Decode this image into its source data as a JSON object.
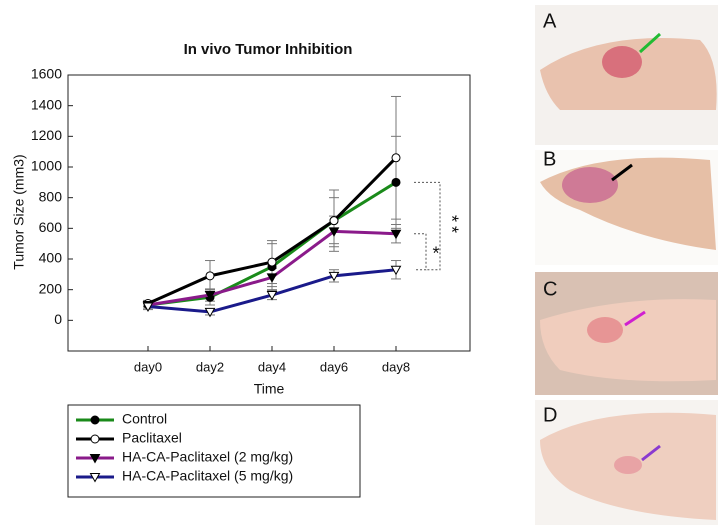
{
  "chart_data": {
    "type": "line",
    "title": "In vivo Tumor Inhibition",
    "x_label": "Time",
    "y_label": "Tumor Size (mm3)",
    "categories": [
      "day0",
      "day2",
      "day4",
      "day6",
      "day8"
    ],
    "ylim": [
      -200,
      1600
    ],
    "yticks": [
      0,
      200,
      400,
      600,
      800,
      1000,
      1200,
      1400,
      1600
    ],
    "series": [
      {
        "name": "Control",
        "color": "#1a8a1a",
        "marker": "circle",
        "marker_fill": "#000000",
        "values": [
          100,
          150,
          350,
          650,
          900
        ],
        "errors": [
          20,
          50,
          150,
          150,
          300
        ]
      },
      {
        "name": "Paclitaxel",
        "color": "#000000",
        "marker": "circle",
        "marker_fill": "#ffffff",
        "values": [
          110,
          290,
          380,
          650,
          1060
        ],
        "errors": [
          20,
          100,
          140,
          200,
          400
        ]
      },
      {
        "name": "HA-CA-Paclitaxel (2 mg/kg)",
        "color": "#8a1a8a",
        "marker": "triangle",
        "marker_fill": "#000000",
        "values": [
          100,
          165,
          280,
          580,
          565
        ],
        "errors": [
          20,
          40,
          60,
          100,
          60
        ]
      },
      {
        "name": "HA-CA-Paclitaxel (5 mg/kg)",
        "color": "#1a1a8a",
        "marker": "triangle",
        "marker_fill": "#ffffff",
        "values": [
          90,
          55,
          165,
          290,
          330
        ],
        "errors": [
          20,
          20,
          30,
          40,
          60
        ]
      }
    ],
    "annotations": [
      "*",
      "**"
    ]
  },
  "figure_panels": [
    {
      "label": "A"
    },
    {
      "label": "B"
    },
    {
      "label": "C"
    },
    {
      "label": "D"
    }
  ]
}
